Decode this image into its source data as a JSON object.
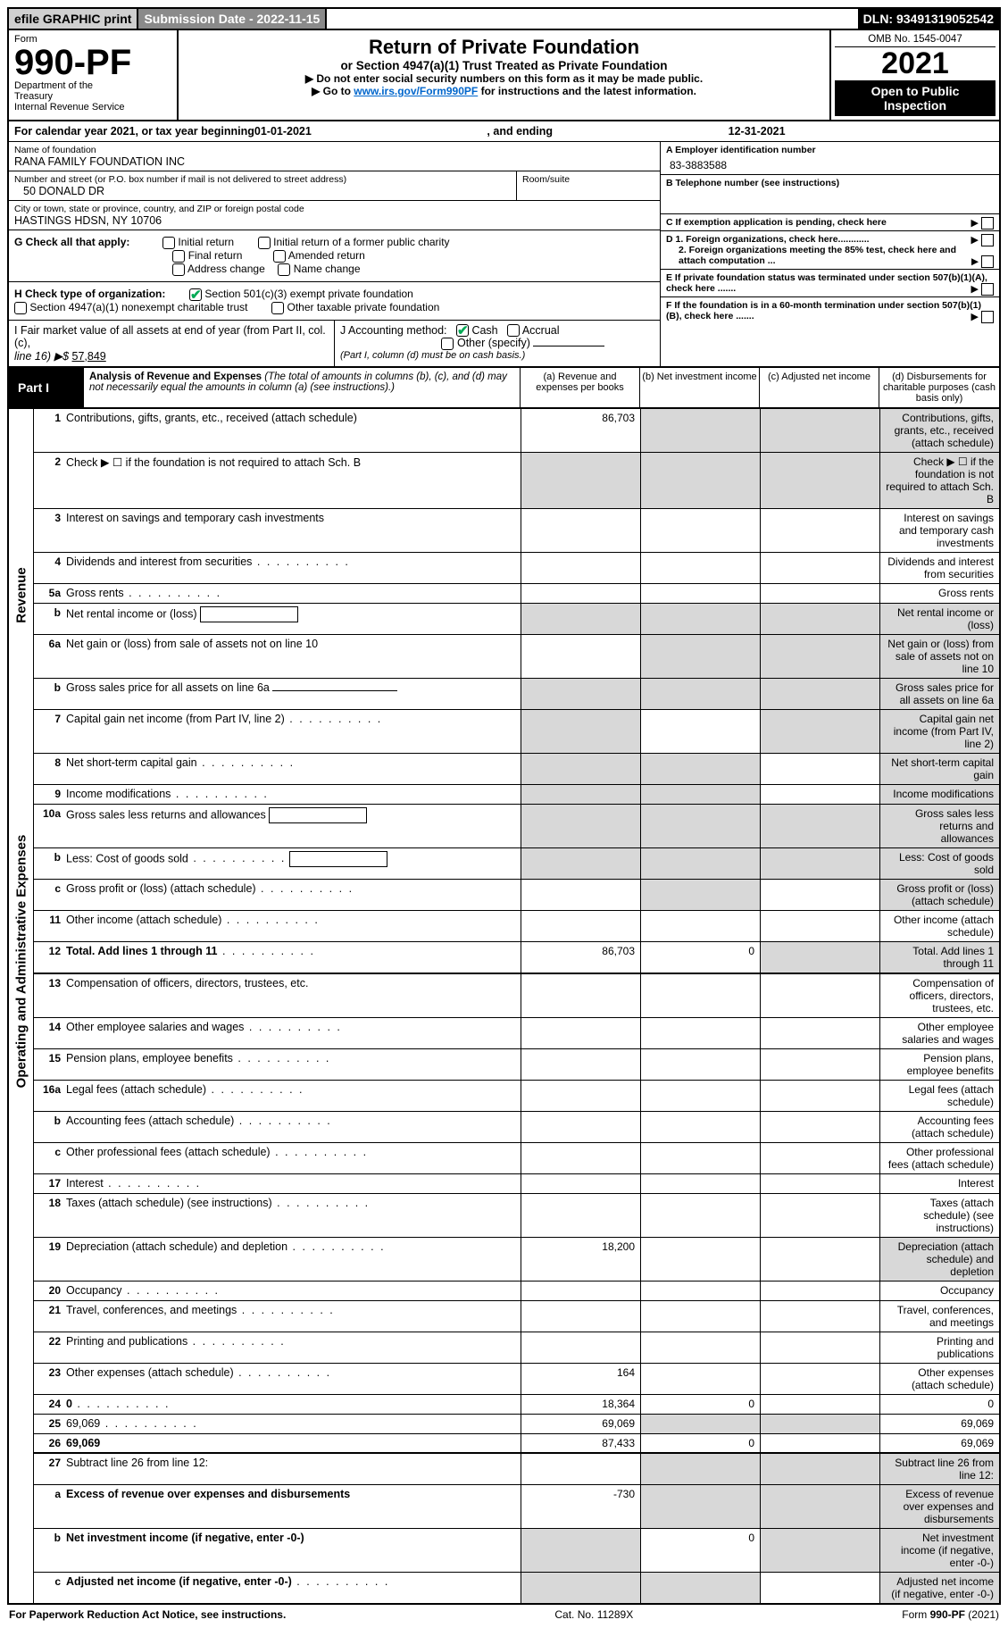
{
  "top": {
    "efile": "efile GRAPHIC print",
    "subdate_label": "Submission Date - ",
    "subdate": "2022-11-15",
    "dln_label": "DLN: ",
    "dln": "93491319052542"
  },
  "hdr": {
    "form_word": "Form",
    "form_no": "990-PF",
    "dept1": "Department of the",
    "dept2": "Treasury",
    "dept3": "Internal Revenue Service",
    "title": "Return of Private Foundation",
    "sub1": "or Section 4947(a)(1) Trust Treated as Private Foundation",
    "sub2a": "▶ Do not enter social security numbers on this form as it may be made public.",
    "sub2b": "▶ Go to ",
    "sub2b_link": "www.irs.gov/Form990PF",
    "sub2b_tail": " for instructions and the latest information.",
    "omb": "OMB No. 1545-0047",
    "year": "2021",
    "open": "Open to Public",
    "insp": "Inspection"
  },
  "cal": {
    "a": "For calendar year 2021, or tax year beginning ",
    "begin": "01-01-2021",
    "mid": " , and ending ",
    "end": "12-31-2021"
  },
  "ent": {
    "name_lbl": "Name of foundation",
    "name": "RANA FAMILY FOUNDATION INC",
    "addr_lbl": "Number and street (or P.O. box number if mail is not delivered to street address)",
    "addr": "50 DONALD DR",
    "room_lbl": "Room/suite",
    "room": "",
    "city_lbl": "City or town, state or province, country, and ZIP or foreign postal code",
    "city": "HASTINGS HDSN, NY  10706",
    "A_lbl": "A Employer identification number",
    "A_val": "83-3883588",
    "B_lbl": "B Telephone number (see instructions)",
    "B_val": "",
    "C_lbl": "C If exemption application is pending, check here",
    "D1_lbl": "D 1. Foreign organizations, check here............",
    "D2_lbl": "2. Foreign organizations meeting the 85% test, check here and attach computation ...",
    "E_lbl": "E  If private foundation status was terminated under section 507(b)(1)(A), check here .......",
    "F_lbl": "F  If the foundation is in a 60-month termination under section 507(b)(1)(B), check here .......",
    "G_lbl": "G Check all that apply:",
    "G_opts": [
      "Initial return",
      "Initial return of a former public charity",
      "Final return",
      "Amended return",
      "Address change",
      "Name change"
    ],
    "H_lbl": "H Check type of organization:",
    "H_opt1": "Section 501(c)(3) exempt private foundation",
    "H_opt2": "Section 4947(a)(1) nonexempt charitable trust",
    "H_opt3": "Other taxable private foundation",
    "I_lbl": "I Fair market value of all assets at end of year (from Part II, col. (c),",
    "I_line": "line 16) ▶$ ",
    "I_val": "57,849",
    "J_lbl": "J Accounting method:",
    "J_cash": "Cash",
    "J_accr": "Accrual",
    "J_other": "Other (specify)",
    "J_note": "(Part I, column (d) must be on cash basis.)"
  },
  "p1": {
    "label": "Part I",
    "title": "Analysis of Revenue and Expenses",
    "note": " (The total of amounts in columns (b), (c), and (d) may not necessarily equal the amounts in column (a) (see instructions).)",
    "cols": {
      "a": "(a)   Revenue and expenses per books",
      "b": "(b)   Net investment income",
      "c": "(c)   Adjusted net income",
      "d": "(d)   Disbursements for charitable purposes (cash basis only)"
    }
  },
  "side": {
    "rev": "Revenue",
    "exp": "Operating and Administrative Expenses"
  },
  "rows": [
    {
      "n": "1",
      "d": "Contributions, gifts, grants, etc., received (attach schedule)",
      "a": "86,703",
      "bgrey": true,
      "cgrey": true,
      "dgrey": true
    },
    {
      "n": "2",
      "d": "Check ▶ ☐ if the foundation is not required to attach Sch. B",
      "dotsOnly": true,
      "agrey": true,
      "bgrey": true,
      "cgrey": true,
      "dgrey": true
    },
    {
      "n": "3",
      "d": "Interest on savings and temporary cash investments"
    },
    {
      "n": "4",
      "d": "Dividends and interest from securities",
      "dots": true
    },
    {
      "n": "5a",
      "d": "Gross rents",
      "dots": true
    },
    {
      "n": "b",
      "d": "Net rental income or (loss)",
      "inlinebox": true,
      "agrey": true,
      "bgrey": true,
      "cgrey": true,
      "dgrey": true
    },
    {
      "n": "6a",
      "d": "Net gain or (loss) from sale of assets not on line 10",
      "bgrey": true,
      "cgrey": true,
      "dgrey": true
    },
    {
      "n": "b",
      "d": "Gross sales price for all assets on line 6a",
      "uline": true,
      "agrey": true,
      "bgrey": true,
      "cgrey": true,
      "dgrey": true
    },
    {
      "n": "7",
      "d": "Capital gain net income (from Part IV, line 2)",
      "dots": true,
      "agrey": true,
      "cgrey": true,
      "dgrey": true
    },
    {
      "n": "8",
      "d": "Net short-term capital gain",
      "dots": true,
      "agrey": true,
      "bgrey": true,
      "dgrey": true
    },
    {
      "n": "9",
      "d": "Income modifications",
      "dots": true,
      "agrey": true,
      "bgrey": true,
      "dgrey": true
    },
    {
      "n": "10a",
      "d": "Gross sales less returns and allowances",
      "inlinebox": true,
      "agrey": true,
      "bgrey": true,
      "cgrey": true,
      "dgrey": true
    },
    {
      "n": "b",
      "d": "Less: Cost of goods sold",
      "dots": true,
      "inlinebox": true,
      "agrey": true,
      "bgrey": true,
      "cgrey": true,
      "dgrey": true
    },
    {
      "n": "c",
      "d": "Gross profit or (loss) (attach schedule)",
      "dots": true,
      "bgrey": true,
      "dgrey": true
    },
    {
      "n": "11",
      "d": "Other income (attach schedule)",
      "dots": true
    },
    {
      "n": "12",
      "d": "Total. Add lines 1 through 11",
      "dots": true,
      "bold": true,
      "a": "86,703",
      "b": "0",
      "cgrey": true,
      "dgrey": true,
      "hsep": true
    },
    {
      "n": "13",
      "d": "Compensation of officers, directors, trustees, etc."
    },
    {
      "n": "14",
      "d": "Other employee salaries and wages",
      "dots": true
    },
    {
      "n": "15",
      "d": "Pension plans, employee benefits",
      "dots": true
    },
    {
      "n": "16a",
      "d": "Legal fees (attach schedule)",
      "dots": true
    },
    {
      "n": "b",
      "d": "Accounting fees (attach schedule)",
      "dots": true
    },
    {
      "n": "c",
      "d": "Other professional fees (attach schedule)",
      "dots": true
    },
    {
      "n": "17",
      "d": "Interest",
      "dots": true
    },
    {
      "n": "18",
      "d": "Taxes (attach schedule) (see instructions)",
      "dots": true
    },
    {
      "n": "19",
      "d": "Depreciation (attach schedule) and depletion",
      "dots": true,
      "a": "18,200",
      "dgrey": true
    },
    {
      "n": "20",
      "d": "Occupancy",
      "dots": true
    },
    {
      "n": "21",
      "d": "Travel, conferences, and meetings",
      "dots": true
    },
    {
      "n": "22",
      "d": "Printing and publications",
      "dots": true
    },
    {
      "n": "23",
      "d": "Other expenses (attach schedule)",
      "dots": true,
      "a": "164"
    },
    {
      "n": "24",
      "d": "0",
      "dots": true,
      "bold": true,
      "a": "18,364",
      "b": "0"
    },
    {
      "n": "25",
      "d": "69,069",
      "dots": true,
      "a": "69,069",
      "bgrey": true,
      "cgrey": true
    },
    {
      "n": "26",
      "d": "69,069",
      "bold": true,
      "a": "87,433",
      "b": "0",
      "hsep": true
    },
    {
      "n": "27",
      "d": "Subtract line 26 from line 12:",
      "bgrey": true,
      "cgrey": true,
      "dgrey": true
    },
    {
      "n": "a",
      "d": "Excess of revenue over expenses and disbursements",
      "bold": true,
      "a": "-730",
      "bgrey": true,
      "cgrey": true,
      "dgrey": true
    },
    {
      "n": "b",
      "d": "Net investment income (if negative, enter -0-)",
      "bold": true,
      "agrey": true,
      "b": "0",
      "cgrey": true,
      "dgrey": true
    },
    {
      "n": "c",
      "d": "Adjusted net income (if negative, enter -0-)",
      "dots": true,
      "bold": true,
      "agrey": true,
      "bgrey": true,
      "dgrey": true
    }
  ],
  "footer": {
    "l": "For Paperwork Reduction Act Notice, see instructions.",
    "c": "Cat. No. 11289X",
    "r": "Form 990-PF (2021)"
  },
  "colors": {
    "grey_cell": "#d8d8d8",
    "topbar_grey": "#d0d0d0",
    "topbar_dark": "#8a8a8a",
    "link": "#0066cc"
  }
}
